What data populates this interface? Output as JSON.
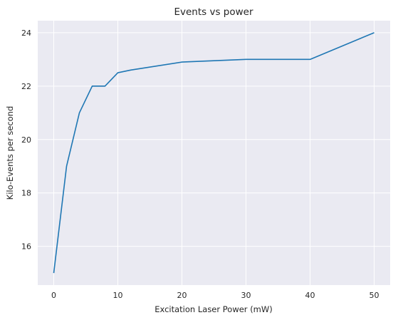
{
  "chart_data": {
    "type": "line",
    "title": "Events vs power",
    "xlabel": "Excitation Laser Power (mW)",
    "ylabel": "Kilo-Events per second",
    "xlim": [
      -2.5,
      52.5
    ],
    "ylim": [
      14.55,
      24.45
    ],
    "xticks": [
      0,
      10,
      20,
      30,
      40,
      50
    ],
    "yticks": [
      16,
      18,
      20,
      22,
      24
    ],
    "grid": true,
    "series": [
      {
        "name": "Events",
        "color": "#1f77b4",
        "x": [
          0,
          2,
          4,
          6,
          8,
          10,
          12,
          20,
          30,
          40,
          50
        ],
        "y": [
          15,
          19,
          21,
          22,
          22,
          22.5,
          22.6,
          22.9,
          23,
          23,
          24
        ]
      }
    ]
  },
  "colors": {
    "plot_background": "#eaeaf2",
    "grid": "#ffffff",
    "line": "#1f77b4"
  }
}
